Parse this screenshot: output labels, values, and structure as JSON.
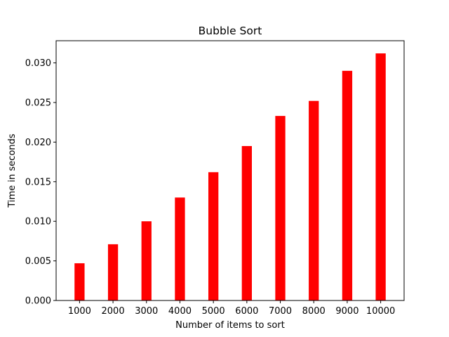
{
  "chart_data": {
    "type": "bar",
    "title": "Bubble Sort",
    "xlabel": "Number of items to sort",
    "ylabel": "Time in seconds",
    "categories": [
      "1000",
      "2000",
      "3000",
      "4000",
      "5000",
      "6000",
      "7000",
      "8000",
      "9000",
      "10000"
    ],
    "values": [
      0.0047,
      0.0071,
      0.01,
      0.013,
      0.0162,
      0.0195,
      0.0233,
      0.0252,
      0.029,
      0.0312
    ],
    "ylim": [
      0,
      0.0328
    ],
    "yticks": [
      "0.000",
      "0.005",
      "0.010",
      "0.015",
      "0.020",
      "0.025",
      "0.030"
    ],
    "ytick_values": [
      0,
      0.005,
      0.01,
      0.015,
      0.02,
      0.025,
      0.03
    ],
    "bar_color": "#ff0000",
    "grid": false,
    "legend": "none"
  }
}
